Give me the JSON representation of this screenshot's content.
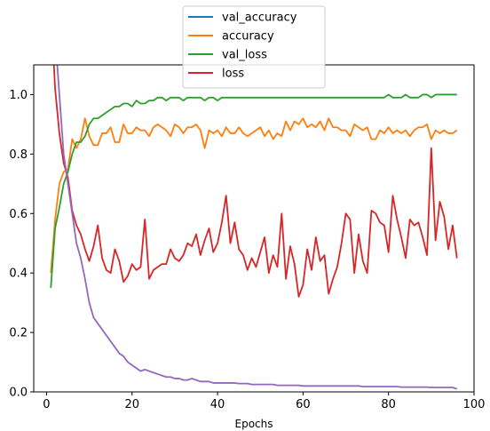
{
  "chart_data": {
    "type": "line",
    "title": "",
    "xlabel": "Epochs",
    "ylabel": "",
    "xlim": [
      -3,
      100
    ],
    "ylim": [
      0.0,
      1.1
    ],
    "xticks": [
      0,
      20,
      40,
      60,
      80,
      100
    ],
    "yticks": [
      0.0,
      0.2,
      0.4,
      0.6,
      0.8,
      1.0
    ],
    "xtick_labels": [
      "0",
      "20",
      "40",
      "60",
      "80",
      "100"
    ],
    "ytick_labels": [
      "0.0",
      "0.2",
      "0.4",
      "0.6",
      "0.8",
      "1.0"
    ],
    "grid": false,
    "legend_position": "top-center, above plot",
    "legend": [
      {
        "name": "val_accuracy",
        "color": "#1f77b4"
      },
      {
        "name": "accuracy",
        "color": "#ff7f0e"
      },
      {
        "name": "val_loss",
        "color": "#2ca02c"
      },
      {
        "name": "loss",
        "color": "#d62728"
      }
    ],
    "series": [
      {
        "name": "val_accuracy",
        "color": "#1f77b4",
        "x": [],
        "values": []
      },
      {
        "name": "accuracy",
        "color": "#ff7f0e",
        "x": [
          1,
          2,
          3,
          4,
          5,
          6,
          7,
          8,
          9,
          10,
          11,
          12,
          13,
          14,
          15,
          16,
          17,
          18,
          19,
          20,
          21,
          22,
          23,
          24,
          25,
          26,
          27,
          28,
          29,
          30,
          31,
          32,
          33,
          34,
          35,
          36,
          37,
          38,
          39,
          40,
          41,
          42,
          43,
          44,
          45,
          46,
          47,
          48,
          49,
          50,
          51,
          52,
          53,
          54,
          55,
          56,
          57,
          58,
          59,
          60,
          61,
          62,
          63,
          64,
          65,
          66,
          67,
          68,
          69,
          70,
          71,
          72,
          73,
          74,
          75,
          76,
          77,
          78,
          79,
          80,
          81,
          82,
          83,
          84,
          85,
          86,
          87,
          88,
          89,
          90,
          91,
          92,
          93,
          94,
          95,
          96
        ],
        "values": [
          0.4,
          0.58,
          0.7,
          0.74,
          0.75,
          0.85,
          0.82,
          0.85,
          0.92,
          0.86,
          0.83,
          0.83,
          0.87,
          0.87,
          0.89,
          0.84,
          0.84,
          0.9,
          0.87,
          0.87,
          0.89,
          0.88,
          0.88,
          0.86,
          0.89,
          0.9,
          0.89,
          0.88,
          0.86,
          0.9,
          0.89,
          0.87,
          0.89,
          0.89,
          0.9,
          0.88,
          0.82,
          0.88,
          0.87,
          0.88,
          0.86,
          0.89,
          0.87,
          0.87,
          0.89,
          0.87,
          0.86,
          0.87,
          0.88,
          0.89,
          0.86,
          0.88,
          0.85,
          0.87,
          0.86,
          0.91,
          0.88,
          0.91,
          0.9,
          0.92,
          0.89,
          0.9,
          0.89,
          0.91,
          0.88,
          0.92,
          0.89,
          0.89,
          0.88,
          0.88,
          0.86,
          0.9,
          0.89,
          0.88,
          0.89,
          0.85,
          0.85,
          0.88,
          0.87,
          0.89,
          0.87,
          0.88,
          0.87,
          0.88,
          0.86,
          0.88,
          0.89,
          0.89,
          0.9,
          0.85,
          0.88,
          0.87,
          0.88,
          0.87,
          0.87,
          0.88
        ]
      },
      {
        "name": "val_loss",
        "color": "#2ca02c",
        "x": [
          1,
          2,
          3,
          4,
          5,
          6,
          7,
          8,
          9,
          10,
          11,
          12,
          13,
          14,
          15,
          16,
          17,
          18,
          19,
          20,
          21,
          22,
          23,
          24,
          25,
          26,
          27,
          28,
          29,
          30,
          31,
          32,
          33,
          34,
          35,
          36,
          37,
          38,
          39,
          40,
          41,
          42,
          43,
          44,
          45,
          46,
          47,
          48,
          49,
          50,
          51,
          52,
          53,
          54,
          55,
          56,
          57,
          58,
          59,
          60,
          61,
          62,
          63,
          64,
          65,
          66,
          67,
          68,
          69,
          70,
          71,
          72,
          73,
          74,
          75,
          76,
          77,
          78,
          79,
          80,
          81,
          82,
          83,
          84,
          85,
          86,
          87,
          88,
          89,
          90,
          91,
          92,
          93,
          94,
          95,
          96
        ],
        "values": [
          0.35,
          0.55,
          0.62,
          0.7,
          0.74,
          0.8,
          0.84,
          0.84,
          0.86,
          0.9,
          0.92,
          0.92,
          0.93,
          0.94,
          0.95,
          0.96,
          0.96,
          0.97,
          0.97,
          0.96,
          0.98,
          0.97,
          0.97,
          0.98,
          0.98,
          0.99,
          0.99,
          0.98,
          0.99,
          0.99,
          0.99,
          0.98,
          0.99,
          0.99,
          0.99,
          0.99,
          0.98,
          0.99,
          0.99,
          0.98,
          0.99,
          0.99,
          0.99,
          0.99,
          0.99,
          0.99,
          0.99,
          0.99,
          0.99,
          0.99,
          0.99,
          0.99,
          0.99,
          0.99,
          0.99,
          0.99,
          0.99,
          0.99,
          0.99,
          0.99,
          0.99,
          0.99,
          0.99,
          0.99,
          0.99,
          0.99,
          0.99,
          0.99,
          0.99,
          0.99,
          0.99,
          0.99,
          0.99,
          0.99,
          0.99,
          0.99,
          0.99,
          0.99,
          0.99,
          1.0,
          0.99,
          0.99,
          0.99,
          1.0,
          0.99,
          0.99,
          0.99,
          1.0,
          1.0,
          0.99,
          1.0,
          1.0,
          1.0,
          1.0,
          1.0,
          1.0
        ]
      },
      {
        "name": "loss",
        "color": "#d62728",
        "x": [
          1,
          2,
          3,
          4,
          5,
          6,
          7,
          8,
          9,
          10,
          11,
          12,
          13,
          14,
          15,
          16,
          17,
          18,
          19,
          20,
          21,
          22,
          23,
          24,
          25,
          26,
          27,
          28,
          29,
          30,
          31,
          32,
          33,
          34,
          35,
          36,
          37,
          38,
          39,
          40,
          41,
          42,
          43,
          44,
          45,
          46,
          47,
          48,
          49,
          50,
          51,
          52,
          53,
          54,
          55,
          56,
          57,
          58,
          59,
          60,
          61,
          62,
          63,
          64,
          65,
          66,
          67,
          68,
          69,
          70,
          71,
          72,
          73,
          74,
          75,
          76,
          77,
          78,
          79,
          80,
          81,
          82,
          83,
          84,
          85,
          86,
          87,
          88,
          89,
          90,
          91,
          92,
          93,
          94,
          95,
          96
        ],
        "values": [
          1.3,
          1.02,
          0.87,
          0.77,
          0.72,
          0.61,
          0.56,
          0.53,
          0.48,
          0.44,
          0.49,
          0.56,
          0.45,
          0.41,
          0.4,
          0.48,
          0.44,
          0.37,
          0.39,
          0.43,
          0.41,
          0.42,
          0.58,
          0.38,
          0.41,
          0.42,
          0.43,
          0.43,
          0.48,
          0.45,
          0.44,
          0.46,
          0.5,
          0.49,
          0.53,
          0.46,
          0.51,
          0.55,
          0.47,
          0.5,
          0.57,
          0.66,
          0.5,
          0.57,
          0.48,
          0.46,
          0.41,
          0.45,
          0.42,
          0.47,
          0.52,
          0.4,
          0.46,
          0.42,
          0.6,
          0.38,
          0.49,
          0.43,
          0.32,
          0.36,
          0.48,
          0.41,
          0.52,
          0.44,
          0.46,
          0.33,
          0.38,
          0.42,
          0.5,
          0.6,
          0.58,
          0.4,
          0.53,
          0.44,
          0.4,
          0.61,
          0.6,
          0.57,
          0.56,
          0.47,
          0.66,
          0.58,
          0.52,
          0.45,
          0.58,
          0.56,
          0.57,
          0.52,
          0.46,
          0.82,
          0.51,
          0.64,
          0.59,
          0.48,
          0.56,
          0.45
        ]
      },
      {
        "name": "",
        "color": "#9467bd",
        "x": [
          1,
          2,
          3,
          4,
          5,
          6,
          7,
          8,
          9,
          10,
          11,
          12,
          13,
          14,
          15,
          16,
          17,
          18,
          19,
          20,
          21,
          22,
          23,
          24,
          25,
          26,
          27,
          28,
          29,
          30,
          31,
          32,
          33,
          34,
          35,
          36,
          37,
          38,
          39,
          40,
          41,
          42,
          43,
          44,
          45,
          46,
          47,
          48,
          49,
          50,
          51,
          52,
          53,
          54,
          55,
          56,
          57,
          58,
          59,
          60,
          61,
          62,
          63,
          64,
          65,
          66,
          67,
          68,
          69,
          70,
          71,
          72,
          73,
          74,
          75,
          76,
          77,
          78,
          79,
          80,
          81,
          82,
          83,
          84,
          85,
          86,
          87,
          88,
          89,
          90,
          91,
          92,
          93,
          94,
          95,
          96
        ],
        "values": [
          1.4,
          1.2,
          1.0,
          0.8,
          0.7,
          0.6,
          0.5,
          0.45,
          0.38,
          0.3,
          0.25,
          0.23,
          0.21,
          0.19,
          0.17,
          0.15,
          0.13,
          0.12,
          0.1,
          0.09,
          0.08,
          0.07,
          0.075,
          0.07,
          0.065,
          0.06,
          0.055,
          0.05,
          0.05,
          0.045,
          0.045,
          0.04,
          0.04,
          0.045,
          0.04,
          0.035,
          0.035,
          0.035,
          0.03,
          0.03,
          0.03,
          0.03,
          0.03,
          0.03,
          0.028,
          0.028,
          0.028,
          0.025,
          0.025,
          0.025,
          0.025,
          0.025,
          0.025,
          0.022,
          0.022,
          0.022,
          0.022,
          0.022,
          0.022,
          0.02,
          0.02,
          0.02,
          0.02,
          0.02,
          0.02,
          0.02,
          0.02,
          0.02,
          0.02,
          0.02,
          0.02,
          0.02,
          0.02,
          0.018,
          0.018,
          0.018,
          0.018,
          0.018,
          0.018,
          0.018,
          0.018,
          0.018,
          0.016,
          0.016,
          0.016,
          0.016,
          0.016,
          0.016,
          0.016,
          0.015,
          0.015,
          0.015,
          0.015,
          0.015,
          0.015,
          0.01
        ]
      }
    ]
  }
}
